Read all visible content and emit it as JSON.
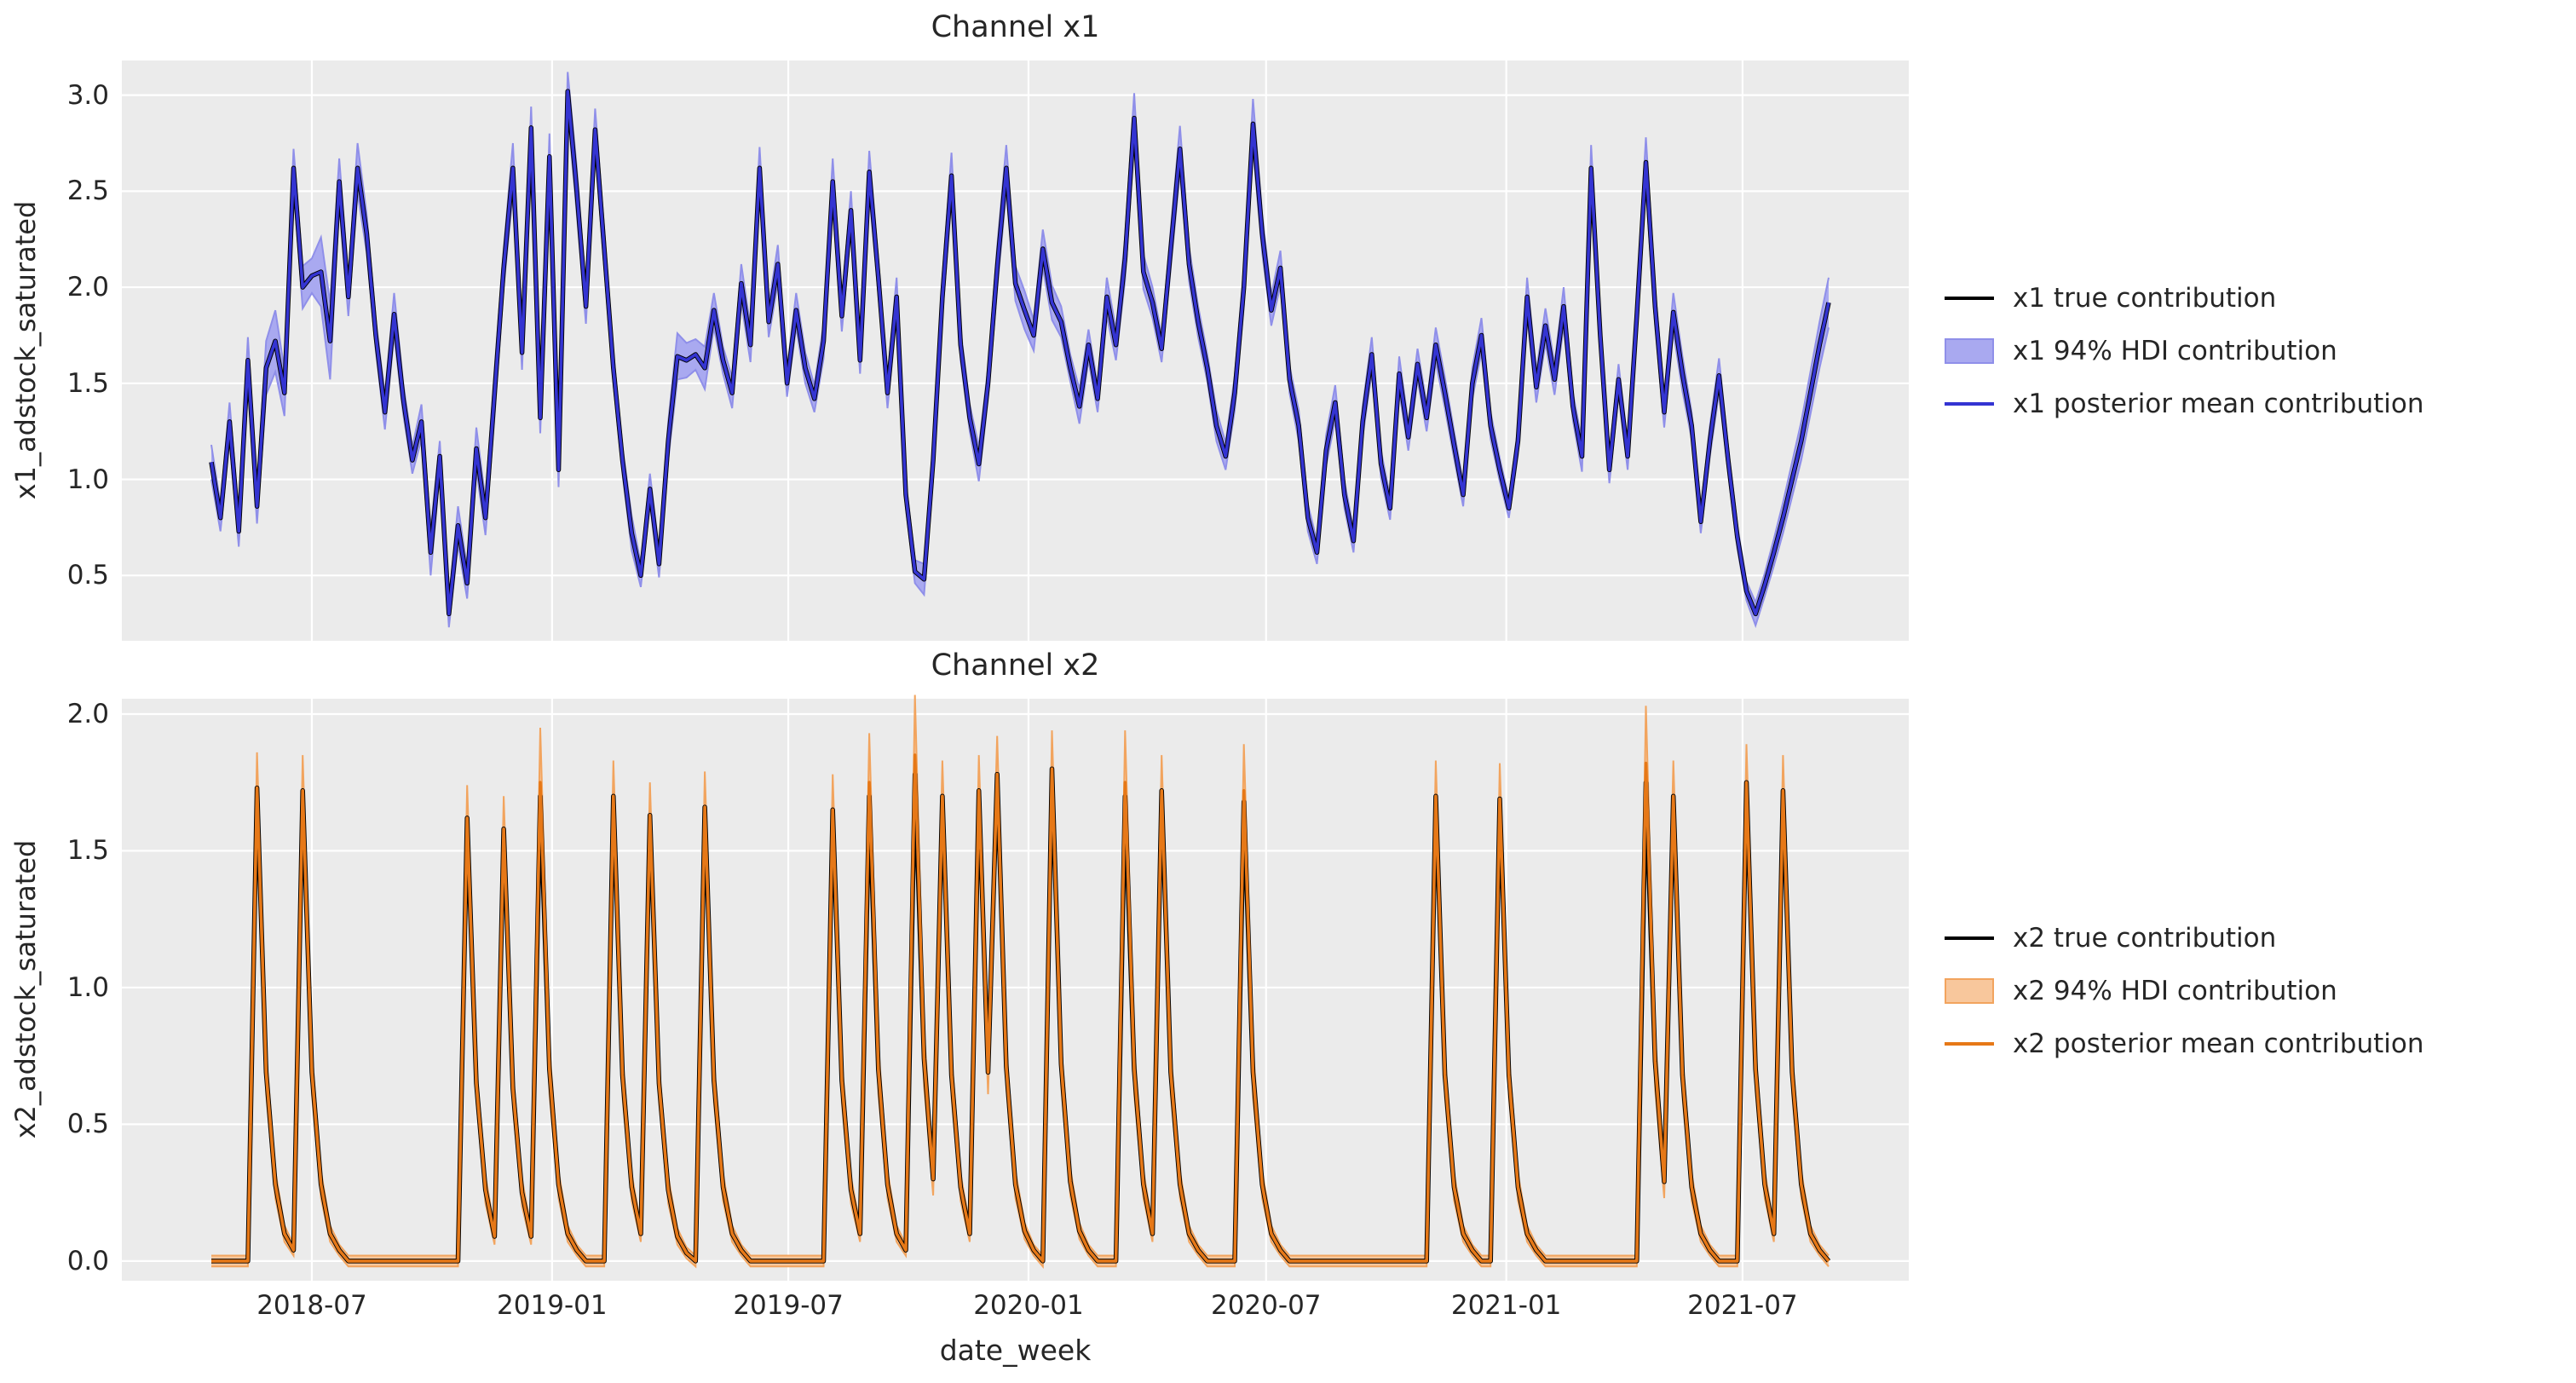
{
  "figure": {
    "background": "#ffffff",
    "plot_background": "#ebebeb",
    "grid_color": "#ffffff",
    "text_color": "#262626"
  },
  "xaxis": {
    "label": "date_week",
    "start_date": "2018-04-15",
    "step_days": 7,
    "n_points": 178,
    "ticks": [
      {
        "label": "2018-07",
        "day": 77
      },
      {
        "label": "2019-01",
        "day": 261
      },
      {
        "label": "2019-07",
        "day": 442
      },
      {
        "label": "2020-01",
        "day": 626
      },
      {
        "label": "2020-07",
        "day": 808
      },
      {
        "label": "2021-01",
        "day": 992
      },
      {
        "label": "2021-07",
        "day": 1173
      }
    ]
  },
  "chart_data": [
    {
      "type": "line",
      "title": "Channel x1",
      "ylabel": "x1_adstock_saturated",
      "legend": [
        "x1 true contribution",
        "x1 94% HDI contribution",
        "x1 posterior mean contribution"
      ],
      "line_color": "#3434d2",
      "band_fill": "#a9a9f0",
      "band_edge": "#8f8fe9",
      "true_color": "#000000",
      "ylim": [
        0.16,
        3.18
      ],
      "yticks": [
        {
          "label": "0.5",
          "value": 0.5
        },
        {
          "label": "1.0",
          "value": 1.0
        },
        {
          "label": "1.5",
          "value": 1.5
        },
        {
          "label": "2.0",
          "value": 2.0
        },
        {
          "label": "2.5",
          "value": 2.5
        },
        {
          "label": "3.0",
          "value": 3.0
        }
      ],
      "grid": true,
      "legend_position": "center right, outside axes",
      "mean": [
        1.09,
        0.8,
        1.3,
        0.73,
        1.62,
        0.86,
        1.58,
        1.72,
        1.45,
        2.62,
        2.0,
        2.06,
        2.08,
        1.72,
        2.55,
        1.95,
        2.62,
        2.28,
        1.75,
        1.35,
        1.86,
        1.42,
        1.1,
        1.3,
        0.62,
        1.12,
        0.3,
        0.76,
        0.46,
        1.16,
        0.8,
        1.45,
        2.1,
        2.62,
        1.66,
        2.83,
        1.32,
        2.68,
        1.05,
        3.02,
        2.5,
        1.9,
        2.82,
        2.2,
        1.58,
        1.1,
        0.72,
        0.5,
        0.95,
        0.56,
        1.2,
        1.64,
        1.62,
        1.65,
        1.58,
        1.88,
        1.62,
        1.45,
        2.02,
        1.7,
        2.62,
        1.82,
        2.12,
        1.5,
        1.88,
        1.58,
        1.42,
        1.72,
        2.55,
        1.85,
        2.4,
        1.62,
        2.6,
        2.05,
        1.45,
        1.95,
        0.92,
        0.52,
        0.48,
        1.1,
        1.95,
        2.58,
        1.7,
        1.32,
        1.08,
        1.5,
        2.1,
        2.62,
        2.02,
        1.88,
        1.75,
        2.2,
        1.92,
        1.82,
        1.58,
        1.38,
        1.7,
        1.42,
        1.95,
        1.7,
        2.15,
        2.88,
        2.08,
        1.92,
        1.68,
        2.2,
        2.72,
        2.12,
        1.82,
        1.58,
        1.28,
        1.12,
        1.45,
        2.0,
        2.85,
        2.28,
        1.88,
        2.1,
        1.52,
        1.28,
        0.8,
        0.62,
        1.15,
        1.4,
        0.92,
        0.68,
        1.3,
        1.65,
        1.08,
        0.85,
        1.55,
        1.22,
        1.6,
        1.32,
        1.7,
        1.45,
        1.18,
        0.92,
        1.5,
        1.75,
        1.28,
        1.05,
        0.85,
        1.2,
        1.95,
        1.48,
        1.8,
        1.52,
        1.9,
        1.38,
        1.12,
        2.62,
        1.75,
        1.05,
        1.52,
        1.12,
        1.85,
        2.65,
        1.9,
        1.35,
        1.87,
        1.55,
        1.28,
        0.78,
        1.2,
        1.54,
        1.1,
        0.7,
        0.42,
        0.3,
        0.45,
        0.62,
        0.8,
        1.0,
        1.2,
        1.45,
        1.7,
        1.92
      ],
      "hdi_width": [
        0.09,
        0.07,
        0.1,
        0.08,
        0.12,
        0.09,
        0.14,
        0.16,
        0.12,
        0.1,
        0.11,
        0.09,
        0.18,
        0.2,
        0.12,
        0.1,
        0.13,
        0.1,
        0.08,
        0.09,
        0.11,
        0.08,
        0.07,
        0.09,
        0.12,
        0.08,
        0.07,
        0.1,
        0.08,
        0.11,
        0.09,
        0.12,
        0.1,
        0.13,
        0.09,
        0.11,
        0.08,
        0.12,
        0.09,
        0.1,
        0.12,
        0.09,
        0.11,
        0.1,
        0.08,
        0.07,
        0.09,
        0.06,
        0.08,
        0.07,
        0.1,
        0.12,
        0.09,
        0.08,
        0.11,
        0.09,
        0.07,
        0.08,
        0.1,
        0.09,
        0.11,
        0.08,
        0.1,
        0.07,
        0.09,
        0.08,
        0.07,
        0.09,
        0.12,
        0.08,
        0.1,
        0.07,
        0.11,
        0.09,
        0.08,
        0.1,
        0.07,
        0.06,
        0.08,
        0.09,
        0.1,
        0.12,
        0.08,
        0.07,
        0.09,
        0.08,
        0.11,
        0.12,
        0.09,
        0.1,
        0.08,
        0.1,
        0.09,
        0.08,
        0.07,
        0.09,
        0.08,
        0.07,
        0.1,
        0.08,
        0.11,
        0.13,
        0.09,
        0.08,
        0.07,
        0.1,
        0.12,
        0.09,
        0.08,
        0.07,
        0.08,
        0.07,
        0.09,
        0.1,
        0.13,
        0.1,
        0.08,
        0.09,
        0.07,
        0.08,
        0.07,
        0.06,
        0.08,
        0.09,
        0.07,
        0.06,
        0.08,
        0.09,
        0.07,
        0.06,
        0.09,
        0.07,
        0.08,
        0.07,
        0.09,
        0.08,
        0.07,
        0.06,
        0.08,
        0.09,
        0.07,
        0.06,
        0.05,
        0.07,
        0.1,
        0.08,
        0.09,
        0.08,
        0.1,
        0.07,
        0.08,
        0.12,
        0.09,
        0.07,
        0.08,
        0.07,
        0.09,
        0.13,
        0.1,
        0.08,
        0.1,
        0.09,
        0.07,
        0.06,
        0.08,
        0.09,
        0.07,
        0.06,
        0.05,
        0.06,
        0.06,
        0.07,
        0.08,
        0.09,
        0.1,
        0.11,
        0.12,
        0.13
      ],
      "true_overrides": {}
    },
    {
      "type": "line",
      "title": "Channel x2",
      "ylabel": "x2_adstock_saturated",
      "legend": [
        "x2 true contribution",
        "x2 94% HDI contribution",
        "x2 posterior mean contribution"
      ],
      "line_color": "#e67817",
      "band_fill": "#f8c79c",
      "band_edge": "#f2a45e",
      "true_color": "#000000",
      "ylim": [
        -0.072,
        2.056
      ],
      "yticks": [
        {
          "label": "0.0",
          "value": 0.0
        },
        {
          "label": "0.5",
          "value": 0.5
        },
        {
          "label": "1.0",
          "value": 1.0
        },
        {
          "label": "1.5",
          "value": 1.5
        },
        {
          "label": "2.0",
          "value": 2.0
        }
      ],
      "grid": true,
      "legend_position": "center right, outside axes",
      "mean": [
        0,
        0,
        0,
        0,
        0,
        1.73,
        0.69,
        0.28,
        0.1,
        0.04,
        1.72,
        0.69,
        0.28,
        0.1,
        0.04,
        0,
        0,
        0,
        0,
        0,
        0,
        0,
        0,
        0,
        0,
        0,
        0,
        0,
        1.62,
        0.65,
        0.26,
        0.09,
        1.58,
        0.63,
        0.25,
        0.09,
        1.75,
        0.7,
        0.28,
        0.1,
        0.04,
        0,
        0,
        0,
        1.7,
        0.68,
        0.27,
        0.1,
        1.63,
        0.65,
        0.26,
        0.09,
        0.03,
        0,
        1.66,
        0.66,
        0.27,
        0.1,
        0.04,
        0,
        0,
        0,
        0,
        0,
        0,
        0,
        0,
        0,
        1.65,
        0.66,
        0.26,
        0.1,
        1.75,
        0.7,
        0.28,
        0.1,
        0.04,
        1.85,
        0.74,
        0.3,
        1.7,
        0.68,
        0.27,
        0.1,
        1.72,
        0.69,
        1.78,
        0.71,
        0.28,
        0.11,
        0.04,
        0,
        1.8,
        0.72,
        0.29,
        0.11,
        0.04,
        0,
        0,
        0,
        1.75,
        0.7,
        0.28,
        0.1,
        1.72,
        0.69,
        0.28,
        0.1,
        0.04,
        0,
        0,
        0,
        0,
        1.72,
        0.69,
        0.28,
        0.1,
        0.04,
        0,
        0,
        0,
        0,
        0,
        0,
        0,
        0,
        0,
        0,
        0,
        0,
        0,
        0,
        0,
        0,
        1.7,
        0.68,
        0.27,
        0.1,
        0.04,
        0,
        0,
        1.69,
        0.68,
        0.27,
        0.1,
        0.04,
        0,
        0,
        0,
        0,
        0,
        0,
        0,
        0,
        0,
        0,
        0,
        1.82,
        0.73,
        0.29,
        1.7,
        0.68,
        0.27,
        0.1,
        0.04,
        0,
        0,
        0,
        1.75,
        0.7,
        0.28,
        0.1,
        1.72,
        0.69,
        0.28,
        0.1,
        0.04,
        0
      ],
      "hdi_width": [
        0.02,
        0.02,
        0.02,
        0.02,
        0.02,
        0.13,
        0.08,
        0.05,
        0.03,
        0.02,
        0.13,
        0.08,
        0.05,
        0.03,
        0.02,
        0.02,
        0.02,
        0.02,
        0.02,
        0.02,
        0.02,
        0.02,
        0.02,
        0.02,
        0.02,
        0.02,
        0.02,
        0.02,
        0.12,
        0.07,
        0.05,
        0.03,
        0.12,
        0.07,
        0.05,
        0.03,
        0.2,
        0.09,
        0.05,
        0.03,
        0.02,
        0.02,
        0.02,
        0.02,
        0.13,
        0.08,
        0.05,
        0.03,
        0.12,
        0.07,
        0.05,
        0.03,
        0.02,
        0.02,
        0.13,
        0.08,
        0.05,
        0.03,
        0.02,
        0.02,
        0.02,
        0.02,
        0.02,
        0.02,
        0.02,
        0.02,
        0.02,
        0.02,
        0.13,
        0.08,
        0.05,
        0.03,
        0.18,
        0.09,
        0.05,
        0.03,
        0.02,
        0.22,
        0.1,
        0.06,
        0.13,
        0.08,
        0.05,
        0.03,
        0.13,
        0.08,
        0.14,
        0.08,
        0.05,
        0.03,
        0.02,
        0.02,
        0.14,
        0.08,
        0.05,
        0.03,
        0.02,
        0.02,
        0.02,
        0.02,
        0.19,
        0.09,
        0.05,
        0.03,
        0.13,
        0.08,
        0.05,
        0.03,
        0.02,
        0.02,
        0.02,
        0.02,
        0.02,
        0.17,
        0.09,
        0.05,
        0.03,
        0.02,
        0.02,
        0.02,
        0.02,
        0.02,
        0.02,
        0.02,
        0.02,
        0.02,
        0.02,
        0.02,
        0.02,
        0.02,
        0.02,
        0.02,
        0.02,
        0.02,
        0.13,
        0.08,
        0.05,
        0.03,
        0.02,
        0.02,
        0.02,
        0.13,
        0.08,
        0.05,
        0.03,
        0.02,
        0.02,
        0.02,
        0.02,
        0.02,
        0.02,
        0.02,
        0.02,
        0.02,
        0.02,
        0.02,
        0.02,
        0.21,
        0.1,
        0.06,
        0.13,
        0.08,
        0.05,
        0.03,
        0.02,
        0.02,
        0.02,
        0.02,
        0.14,
        0.08,
        0.05,
        0.03,
        0.13,
        0.08,
        0.05,
        0.03,
        0.02,
        0.02
      ],
      "true_overrides": {
        "36": 1.7,
        "72": 1.7,
        "77": 1.78,
        "100": 1.7,
        "113": 1.68,
        "157": 1.75
      }
    }
  ]
}
